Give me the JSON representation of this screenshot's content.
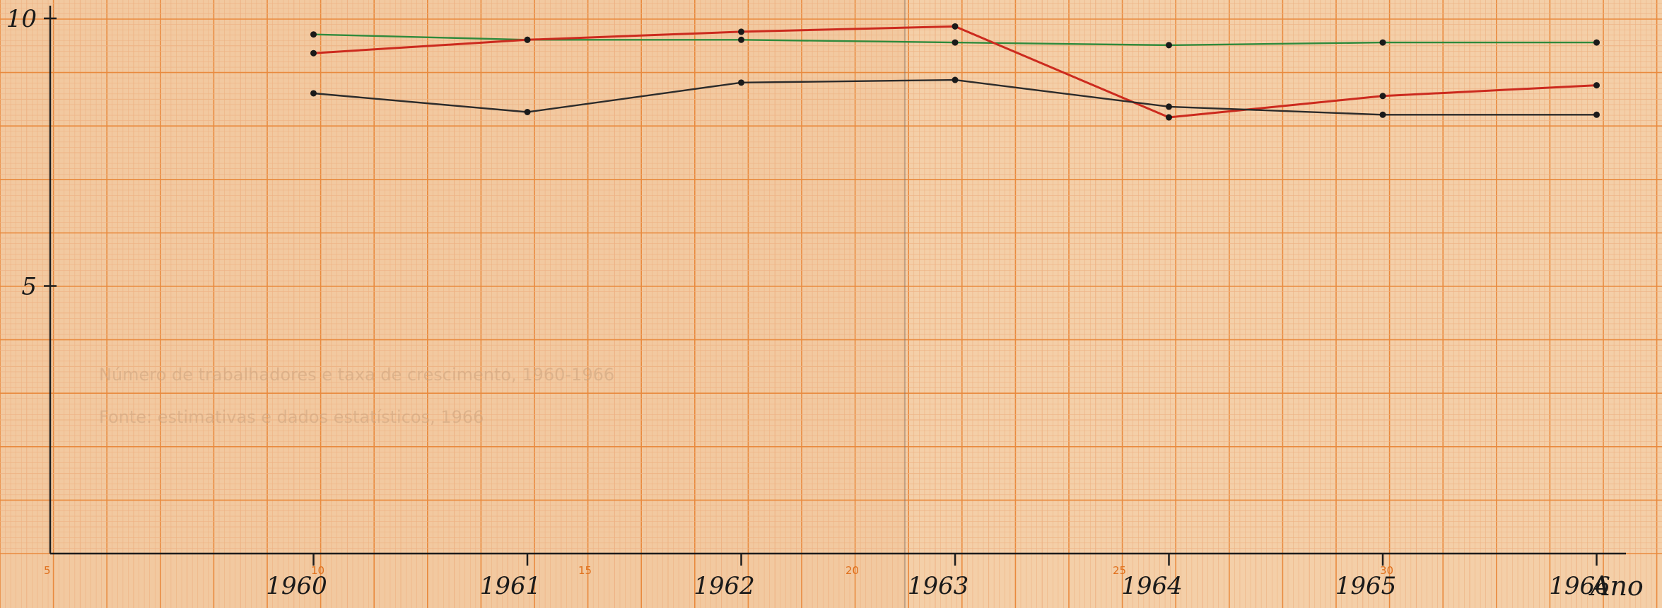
{
  "chart_data": {
    "type": "line",
    "title": "",
    "xlabel": "Ano",
    "ylabel": "",
    "x": [
      1960,
      1961,
      1962,
      1963,
      1964,
      1965,
      1966
    ],
    "x_tick_labels": [
      "1960",
      "1961",
      "1962",
      "1963",
      "1964",
      "1965",
      "1966"
    ],
    "y_tick_labels": [
      "10",
      "5"
    ],
    "ylim": [
      0,
      10.2
    ],
    "xlim": [
      1959,
      1966.4
    ],
    "grid": true,
    "legend": "none",
    "series": [
      {
        "color": "#2f8a3c",
        "values": [
          9.7,
          9.6,
          9.6,
          9.55,
          9.5,
          9.55,
          9.55
        ]
      },
      {
        "color": "#cc2a1e",
        "values": [
          9.35,
          9.6,
          9.75,
          9.85,
          8.15,
          8.55,
          8.75
        ]
      },
      {
        "color": "#2b2b2b",
        "values": [
          8.6,
          8.25,
          8.8,
          8.85,
          8.35,
          8.2,
          8.2
        ]
      }
    ],
    "paper_scale_numbers": [
      "5",
      "10",
      "15",
      "20",
      "25",
      "30"
    ],
    "ghost_text": [
      "Número de trabalhadores e taxa de crescimento, 1960-1966",
      "Fonte: estimativas e dados estatísticos, 1966"
    ]
  },
  "colors": {
    "paper": "#f2c9a0",
    "grid_minor": "#eeb283",
    "grid_major": "#e98a3e",
    "axis": "#1d1d1d"
  }
}
